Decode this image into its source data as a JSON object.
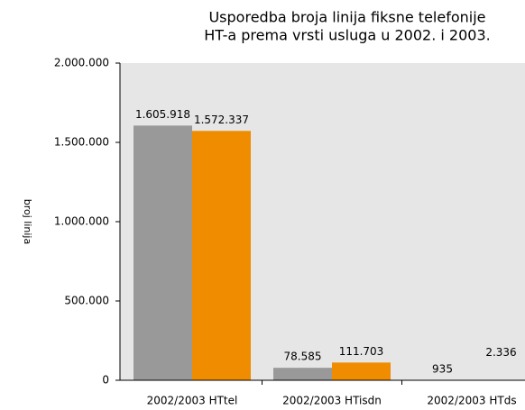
{
  "chart_data": {
    "type": "bar",
    "title": [
      "Usporedba broja linija fiksne telefonije",
      "HT-a prema vrsti usluga u 2002. i 2003."
    ],
    "y_label": "broj linija",
    "categories": [
      "2002/2003 HTtel",
      "2002/2003 HTisdn",
      "2002/2003 HTds"
    ],
    "series": [
      {
        "color": "#999999",
        "values": [
          1605918,
          78585,
          935
        ],
        "value_labels": [
          "1.605.918",
          "78.585",
          "935"
        ]
      },
      {
        "color": "#f08c00",
        "values": [
          1572337,
          111703,
          2336
        ],
        "value_labels": [
          "1.572.337",
          "111.703",
          "2.336"
        ]
      }
    ],
    "ylim": [
      0,
      2000000
    ],
    "yticks": [
      0,
      {
        "value": 500000,
        "label": "500.000"
      },
      {
        "value": 1000000,
        "label": "1.000.000"
      },
      {
        "value": 1500000,
        "label": "1.500.000"
      },
      {
        "value": 2000000,
        "label": "2.000.000"
      }
    ],
    "plot_background": "#e6e6e6"
  }
}
